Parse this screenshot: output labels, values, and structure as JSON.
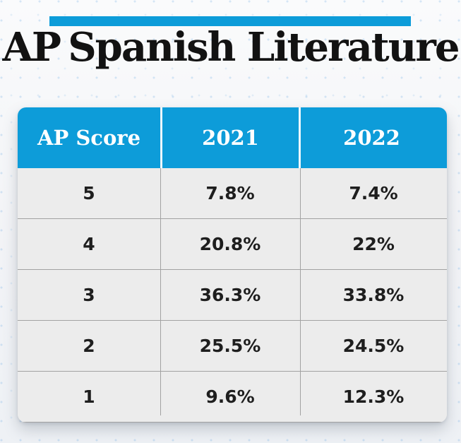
{
  "header": {
    "title_bold": "AP",
    "title_rest": "Spanish Literature"
  },
  "table": {
    "headers": [
      "AP Score",
      "2021",
      "2022"
    ],
    "rows": [
      [
        "5",
        "7.8%",
        "7.4%"
      ],
      [
        "4",
        "20.8%",
        "22%"
      ],
      [
        "3",
        "36.3%",
        "33.8%"
      ],
      [
        "2",
        "25.5%",
        "24.5%"
      ],
      [
        "1",
        "9.6%",
        "12.3%"
      ]
    ]
  },
  "colors": {
    "brand_blue": "#0D9CD9",
    "page_bg": "#f3f4f6",
    "cell_bg": "#ECECEC",
    "divider_gray": "#A2A2A2",
    "body_text": "#1E1E1E",
    "title_text": "#121212",
    "header_text": "#ffffff"
  },
  "chart_data": {
    "type": "table",
    "title": "AP Spanish Literature",
    "xlabel": "AP Score",
    "unit": "%",
    "categories": [
      "5",
      "4",
      "3",
      "2",
      "1"
    ],
    "series": [
      {
        "name": "2021",
        "values": [
          7.8,
          20.8,
          36.3,
          25.5,
          9.6
        ]
      },
      {
        "name": "2022",
        "values": [
          7.4,
          22,
          33.8,
          24.5,
          12.3
        ]
      }
    ]
  }
}
